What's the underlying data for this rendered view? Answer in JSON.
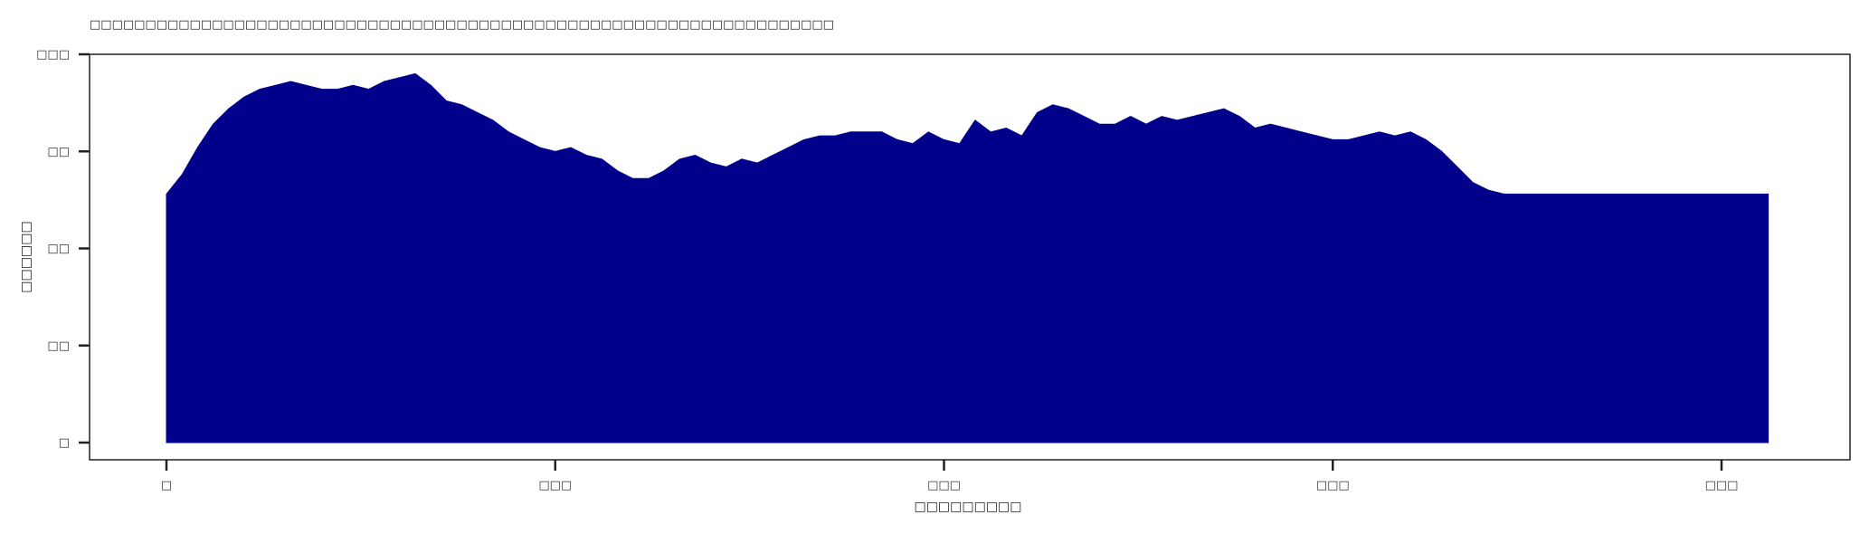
{
  "chart_data": {
    "type": "area",
    "title": "□□□□□□□□□□□□□□□□□□□□□□□□□□□□□□□□□□□□□□□□□□□□□□□□□□□□□□□□□□□□□□□□□□□",
    "xlabel": "□□□□□□□□□",
    "ylabel": "□□□□□□",
    "xlim": [
      -5,
      215
    ],
    "ylim": [
      0,
      100
    ],
    "grid": false,
    "fill_color": "#00008B",
    "x_ticks": [
      {
        "value": 0,
        "label": "□"
      },
      {
        "value": 50,
        "label": "□□□"
      },
      {
        "value": 100,
        "label": "□□□"
      },
      {
        "value": 150,
        "label": "□□□"
      },
      {
        "value": 200,
        "label": "□□□"
      }
    ],
    "y_ticks": [
      {
        "value": 0,
        "label": "□"
      },
      {
        "value": 25,
        "label": "□□"
      },
      {
        "value": 50,
        "label": "□□"
      },
      {
        "value": 75,
        "label": "□□"
      },
      {
        "value": 100,
        "label": "□□□"
      }
    ],
    "x": [
      0,
      2,
      4,
      6,
      8,
      10,
      12,
      14,
      16,
      18,
      20,
      22,
      24,
      26,
      28,
      30,
      32,
      34,
      36,
      38,
      40,
      42,
      44,
      46,
      48,
      50,
      52,
      54,
      56,
      58,
      60,
      62,
      64,
      66,
      68,
      70,
      72,
      74,
      76,
      78,
      80,
      82,
      84,
      86,
      88,
      90,
      92,
      94,
      96,
      98,
      100,
      102,
      104,
      106,
      108,
      110,
      112,
      114,
      116,
      118,
      120,
      122,
      124,
      126,
      128,
      130,
      132,
      134,
      136,
      138,
      140,
      142,
      144,
      146,
      148,
      150,
      152,
      154,
      156,
      158,
      160,
      162,
      164,
      166,
      168,
      170,
      172,
      174,
      176,
      178,
      180,
      182,
      184,
      186,
      188,
      190,
      192,
      194,
      196,
      198,
      200,
      202,
      204,
      206
    ],
    "values": [
      64,
      69,
      76,
      82,
      86,
      89,
      91,
      92,
      93,
      92,
      91,
      91,
      92,
      91,
      93,
      94,
      95,
      92,
      88,
      87,
      85,
      83,
      80,
      78,
      76,
      75,
      76,
      74,
      73,
      70,
      68,
      68,
      70,
      73,
      74,
      72,
      71,
      73,
      72,
      74,
      76,
      78,
      79,
      79,
      80,
      80,
      80,
      78,
      77,
      80,
      78,
      77,
      83,
      80,
      81,
      79,
      85,
      87,
      86,
      84,
      82,
      82,
      84,
      82,
      84,
      83,
      84,
      85,
      86,
      84,
      81,
      82,
      81,
      80,
      79,
      78,
      78,
      79,
      80,
      79,
      80,
      78,
      75,
      71,
      67,
      65,
      64,
      64,
      64,
      64,
      64,
      64,
      64,
      64,
      64,
      64,
      64,
      64,
      64,
      64,
      64,
      64,
      64,
      64
    ]
  }
}
